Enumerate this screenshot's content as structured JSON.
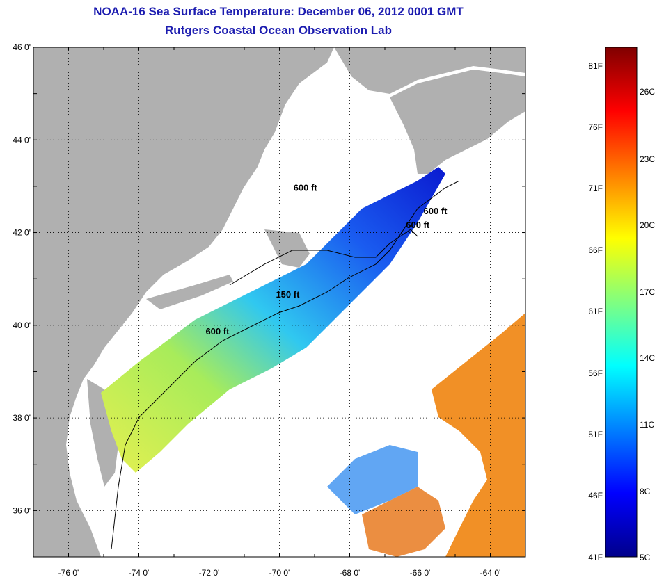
{
  "title": "NOAA-16 Sea Surface Temperature:  December 06, 2012 0001 GMT",
  "subtitle": "Rutgers Coastal Ocean Observation Lab",
  "colors": {
    "land": "#b0b0b0",
    "ocean_nodata": "#ffffff",
    "title": "#1c1cb0",
    "grid": "#000000"
  },
  "map": {
    "lon_range": [
      -77,
      -63
    ],
    "lat_range": [
      35,
      46
    ],
    "lon_ticks": [
      {
        "value": -76,
        "label": "-76 0'"
      },
      {
        "value": -74,
        "label": "-74 0'"
      },
      {
        "value": -72,
        "label": "-72 0'"
      },
      {
        "value": -70,
        "label": "-70 0'"
      },
      {
        "value": -68,
        "label": "-68 0'"
      },
      {
        "value": -66,
        "label": "-66 0'"
      },
      {
        "value": -64,
        "label": "-64 0'"
      }
    ],
    "lat_ticks": [
      {
        "value": 46,
        "label": "46 0'"
      },
      {
        "value": 44,
        "label": "44 0'"
      },
      {
        "value": 42,
        "label": "42 0'"
      },
      {
        "value": 40,
        "label": "40 0'"
      },
      {
        "value": 38,
        "label": "38 0'"
      },
      {
        "value": 36,
        "label": "36 0'"
      }
    ],
    "grid": "dotted",
    "contour_labels": [
      {
        "text": "600 ft",
        "lon": -69.6,
        "lat": 42.9
      },
      {
        "text": "600 ft",
        "lon": -65.9,
        "lat": 42.4
      },
      {
        "text": "600 ft",
        "lon": -66.4,
        "lat": 42.1
      },
      {
        "text": "150 ft",
        "lon": -70.1,
        "lat": 40.6
      },
      {
        "text": "600 ft",
        "lon": -72.1,
        "lat": 39.8
      }
    ]
  },
  "colorbar": {
    "colors": [
      "#00008b",
      "#0000ff",
      "#0080ff",
      "#00ffff",
      "#80ff80",
      "#ffff00",
      "#ff8000",
      "#ff0000",
      "#800000"
    ],
    "fahrenheit": [
      "81F",
      "76F",
      "71F",
      "66F",
      "61F",
      "56F",
      "51F",
      "46F",
      "41F"
    ],
    "celsius": [
      "26C",
      "23C",
      "20C",
      "17C",
      "14C",
      "11C",
      "8C",
      "5C"
    ],
    "range_f": [
      41,
      83
    ]
  }
}
